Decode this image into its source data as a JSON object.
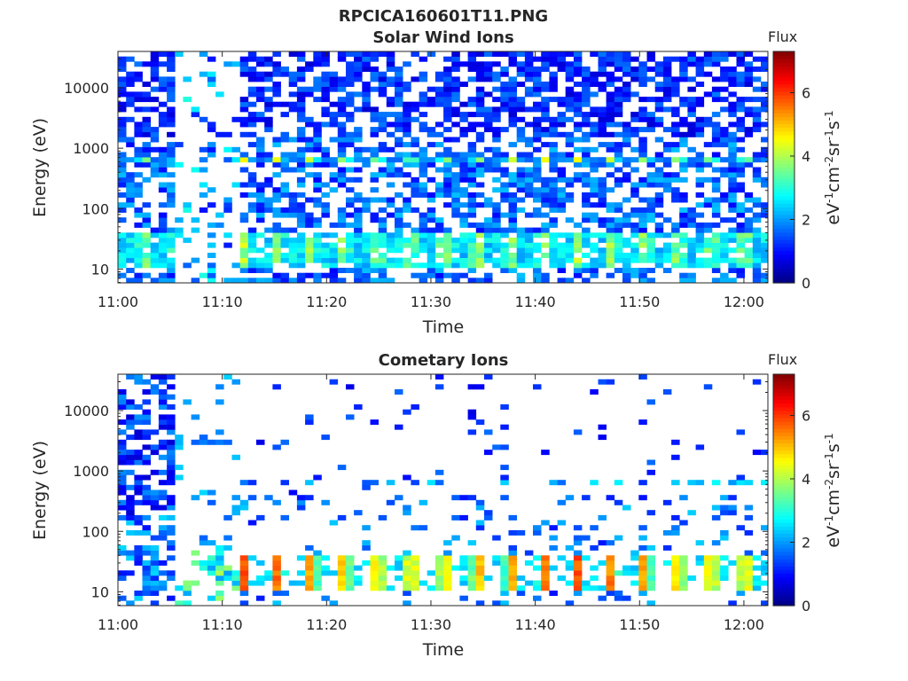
{
  "figure_title": "RPCICA160601T11.PNG",
  "colormap": [
    "#000080",
    "#0000ff",
    "#0080ff",
    "#00ffff",
    "#80ff80",
    "#ffff00",
    "#ff8000",
    "#ff0000",
    "#800000"
  ],
  "chart_data": [
    {
      "type": "heatmap",
      "title": "Solar Wind Ions",
      "xlabel": "Time",
      "ylabel": "Energy (eV)",
      "x_ticks": [
        "11:00",
        "11:10",
        "11:20",
        "11:30",
        "11:40",
        "11:50",
        "12:00"
      ],
      "x_tick_minutes": [
        0,
        10,
        20,
        30,
        40,
        50,
        60
      ],
      "xlim_minutes": [
        0,
        62.3
      ],
      "y_scale": "log",
      "ylim": [
        5.9,
        40000
      ],
      "y_ticks": [
        "10",
        "100",
        "1000",
        "10000"
      ],
      "y_tick_values": [
        10,
        100,
        1000,
        10000
      ],
      "colorbar": {
        "label": "Flux",
        "units": "eV-1cm-2sr-1s-1",
        "range": [
          0,
          7.3
        ],
        "ticks": [
          "0",
          "2",
          "4",
          "6"
        ],
        "tick_values": [
          0,
          2,
          4,
          6
        ]
      },
      "features": [
        {
          "energy_eV": 650,
          "flux": 4.0,
          "period_minutes": 3.2
        },
        {
          "energy_eV": 20,
          "flux": 3.5,
          "period_minutes": 3.2
        }
      ],
      "data_gaps_minutes": [
        [
          4.7,
          11.0
        ]
      ]
    },
    {
      "type": "heatmap",
      "title": "Cometary Ions",
      "xlabel": "Time",
      "ylabel": "Energy (eV)",
      "x_ticks": [
        "11:00",
        "11:10",
        "11:20",
        "11:30",
        "11:40",
        "11:50",
        "12:00"
      ],
      "x_tick_minutes": [
        0,
        10,
        20,
        30,
        40,
        50,
        60
      ],
      "xlim_minutes": [
        0,
        62.3
      ],
      "y_scale": "log",
      "ylim": [
        5.9,
        40000
      ],
      "y_ticks": [
        "10",
        "100",
        "1000",
        "10000"
      ],
      "y_tick_values": [
        10,
        100,
        1000,
        10000
      ],
      "colorbar": {
        "label": "Flux",
        "units": "eV-1cm-2sr-1s-1",
        "range": [
          0,
          7.3
        ],
        "ticks": [
          "0",
          "2",
          "4",
          "6"
        ],
        "tick_values": [
          0,
          2,
          4,
          6
        ]
      },
      "features": [
        {
          "energy_eV": 650,
          "flux": 2.5,
          "period_minutes": 3.2
        },
        {
          "energy_eV": 20,
          "flux": 5.0,
          "period_minutes": 3.2
        }
      ],
      "data_gaps_minutes": [
        [
          4.7,
          11.0
        ]
      ]
    }
  ]
}
